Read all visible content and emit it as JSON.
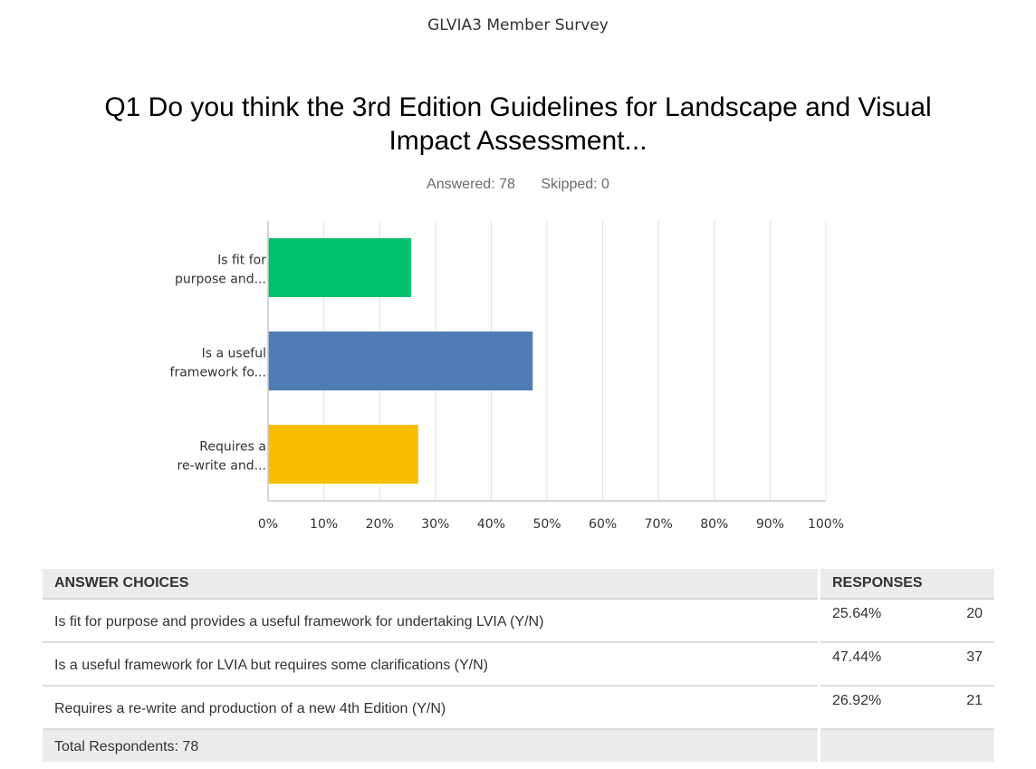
{
  "survey_title": "GLVIA3 Member Survey",
  "question": "Q1 Do you think the 3rd Edition Guidelines for Landscape and Visual Impact Assessment...",
  "stats": {
    "answered": "Answered: 78",
    "skipped": "Skipped: 0"
  },
  "chart_data": {
    "type": "bar",
    "orientation": "horizontal",
    "categories": [
      [
        "Is fit for",
        "purpose and..."
      ],
      [
        "Is a useful",
        "framework fo..."
      ],
      [
        "Requires a",
        "re-write and..."
      ]
    ],
    "values": [
      25.64,
      47.44,
      26.92
    ],
    "colors": [
      "#00bf6f",
      "#507cb6",
      "#f9be00"
    ],
    "xticks": [
      "0%",
      "10%",
      "20%",
      "30%",
      "40%",
      "50%",
      "60%",
      "70%",
      "80%",
      "90%",
      "100%"
    ],
    "xlim": [
      0,
      100
    ],
    "grid": true
  },
  "table": {
    "headers": {
      "choices": "ANSWER CHOICES",
      "responses": "RESPONSES"
    },
    "rows": [
      {
        "choice": "Is fit for purpose and provides a useful framework for undertaking LVIA (Y/N)",
        "percent": "25.64%",
        "count": "20"
      },
      {
        "choice": "Is a useful framework for LVIA but requires some clarifications (Y/N)",
        "percent": "47.44%",
        "count": "37"
      },
      {
        "choice": "Requires a re-write and production of a new 4th Edition (Y/N)",
        "percent": "26.92%",
        "count": "21"
      }
    ],
    "total": "Total Respondents: 78"
  }
}
